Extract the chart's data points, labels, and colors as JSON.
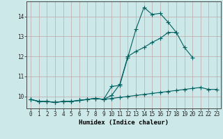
{
  "xlabel": "Humidex (Indice chaleur)",
  "ylabel": "",
  "bg_color": "#cce8e8",
  "grid_color": "#c0a8a8",
  "line_color": "#006060",
  "xlim": [
    -0.5,
    23.5
  ],
  "ylim": [
    9.4,
    14.75
  ],
  "yticks": [
    10,
    11,
    12,
    13,
    14
  ],
  "xticks": [
    0,
    1,
    2,
    3,
    4,
    5,
    6,
    7,
    8,
    9,
    10,
    11,
    12,
    13,
    14,
    15,
    16,
    17,
    18,
    19,
    20,
    21,
    22,
    23
  ],
  "line1_y": [
    9.85,
    9.75,
    9.75,
    9.7,
    9.75,
    9.75,
    9.8,
    9.85,
    9.9,
    9.85,
    10.5,
    10.55,
    11.95,
    13.35,
    14.45,
    14.1,
    14.15,
    13.7,
    13.2,
    null,
    null,
    null,
    null,
    null
  ],
  "line2_y": [
    9.85,
    9.75,
    9.75,
    9.7,
    9.75,
    9.75,
    9.8,
    9.85,
    9.9,
    9.85,
    10.05,
    10.6,
    12.0,
    12.25,
    12.45,
    12.7,
    12.9,
    13.2,
    13.2,
    12.45,
    11.95,
    null,
    null,
    null
  ],
  "line3_y": [
    9.85,
    9.75,
    9.75,
    9.7,
    9.75,
    9.75,
    9.8,
    9.85,
    9.9,
    9.85,
    9.9,
    9.95,
    10.0,
    10.05,
    10.1,
    10.15,
    10.2,
    10.25,
    10.3,
    10.35,
    10.4,
    10.45,
    10.35,
    10.35
  ],
  "marker_size": 2.0,
  "line_width": 0.8,
  "tick_fontsize": 5.5,
  "xlabel_fontsize": 6.5
}
